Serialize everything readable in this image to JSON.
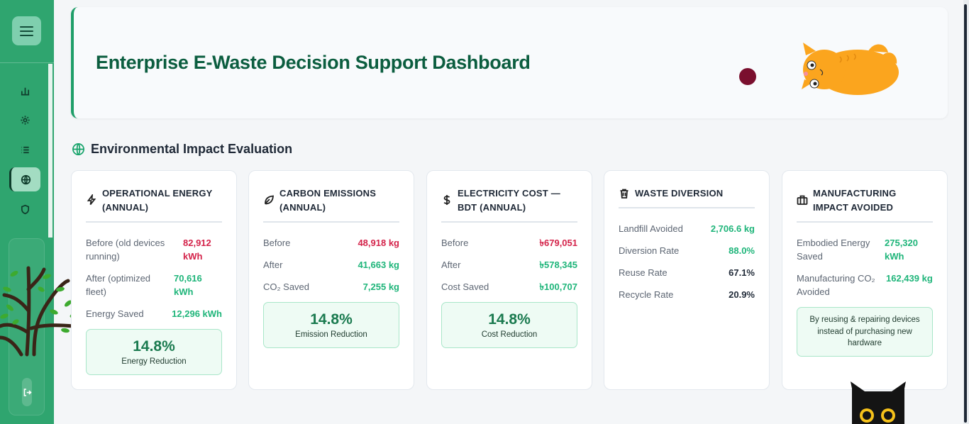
{
  "header": {
    "title": "Enterprise E-Waste Decision Support Dashboard"
  },
  "sidebar": {
    "items": [
      {
        "icon": "bar-chart-icon",
        "active": false
      },
      {
        "icon": "gear-icon",
        "active": false
      },
      {
        "icon": "list-icon",
        "active": false
      },
      {
        "icon": "globe-icon",
        "active": true
      },
      {
        "icon": "shield-icon",
        "active": false
      }
    ],
    "logout_icon": "logout-icon"
  },
  "section": {
    "title": "Environmental Impact Evaluation",
    "icon": "globe-icon"
  },
  "cards": {
    "energy": {
      "title": "OPERATIONAL ENERGY (ANNUAL)",
      "icon": "lightning-icon",
      "rows": [
        {
          "label": "Before (old devices running)",
          "value": "82,912 kWh",
          "color": "#d4234a"
        },
        {
          "label": "After (optimized fleet)",
          "value": "70,616 kWh",
          "color": "#1fb57a"
        },
        {
          "label": "Energy Saved",
          "value": "12,296 kWh",
          "color": "#1fb57a"
        }
      ],
      "highlight": {
        "value": "14.8%",
        "label": "Energy Reduction"
      }
    },
    "carbon": {
      "title": "CARBON EMISSIONS (ANNUAL)",
      "icon": "leaf-icon",
      "rows": [
        {
          "label": "Before",
          "value": "48,918 kg",
          "color": "#d4234a"
        },
        {
          "label": "After",
          "value": "41,663 kg",
          "color": "#1fb57a"
        },
        {
          "label": "CO₂ Saved",
          "value": "7,255 kg",
          "color": "#1fb57a"
        }
      ],
      "highlight": {
        "value": "14.8%",
        "label": "Emission Reduction"
      }
    },
    "cost": {
      "title": "ELECTRICITY COST — BDT (ANNUAL)",
      "icon": "dollar-icon",
      "rows": [
        {
          "label": "Before",
          "value": "৳679,051",
          "color": "#d4234a"
        },
        {
          "label": "After",
          "value": "৳578,345",
          "color": "#1fb57a"
        },
        {
          "label": "Cost Saved",
          "value": "৳100,707",
          "color": "#1fb57a"
        }
      ],
      "highlight": {
        "value": "14.8%",
        "label": "Cost Reduction"
      }
    },
    "waste": {
      "title": "WASTE DIVERSION",
      "icon": "trash-icon",
      "rows": [
        {
          "label": "Landfill Avoided",
          "value": "2,706.6 kg",
          "color": "#1fb57a"
        },
        {
          "label": "Diversion Rate",
          "value": "88.0%",
          "color": "#1fb57a"
        },
        {
          "label": "Reuse Rate",
          "value": "67.1%",
          "color": "#1f2937"
        },
        {
          "label": "Recycle Rate",
          "value": "20.9%",
          "color": "#1f2937"
        }
      ]
    },
    "manufacturing": {
      "title": "MANUFACTURING IMPACT AVOIDED",
      "icon": "factory-icon",
      "rows": [
        {
          "label": "Embodied Energy Saved",
          "value": "275,320 kWh",
          "color": "#1fb57a"
        },
        {
          "label": "Manufacturing CO₂ Avoided",
          "value": "162,439 kg",
          "color": "#1fb57a"
        }
      ],
      "note": "By reusing & repairing devices instead of purchasing new hardware"
    }
  }
}
